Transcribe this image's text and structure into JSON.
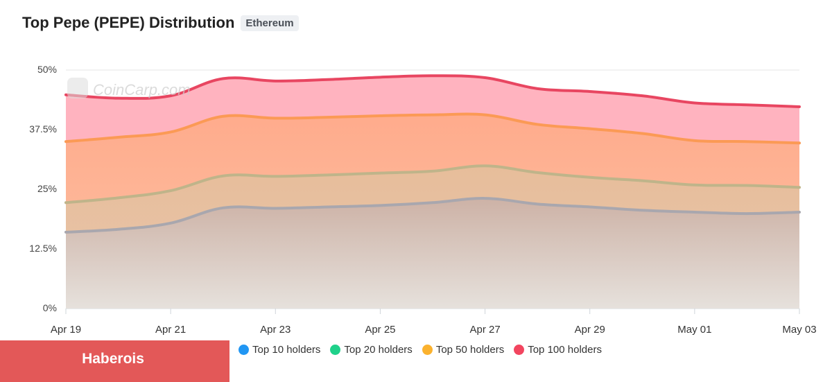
{
  "title": "Top Pepe (PEPE) Distribution",
  "chain_badge": "Ethereum",
  "watermark": "CoinCarp.com",
  "banner": "Haberois",
  "chart_data": {
    "type": "area",
    "x": [
      "Apr 19",
      "Apr 20",
      "Apr 21",
      "Apr 22",
      "Apr 23",
      "Apr 24",
      "Apr 25",
      "Apr 26",
      "Apr 27",
      "Apr 28",
      "Apr 29",
      "Apr 30",
      "May 01",
      "May 02",
      "May 03"
    ],
    "x_tick_labels": [
      "Apr 19",
      "Apr 21",
      "Apr 23",
      "Apr 25",
      "Apr 27",
      "Apr 29",
      "May 01",
      "May 03"
    ],
    "y_tick_labels": [
      "50%",
      "37.5%",
      "25%",
      "12.5%",
      "0%"
    ],
    "ylim": [
      0,
      50
    ],
    "grid": true,
    "legend_position": "bottom",
    "series": [
      {
        "name": "Top 10 holders",
        "color": "#2196f3",
        "values": [
          16,
          16.6,
          17.9,
          21.1,
          21.0,
          21.3,
          21.6,
          22.2,
          23.1,
          21.9,
          21.3,
          20.6,
          20.2,
          19.9,
          20.2
        ]
      },
      {
        "name": "Top 20 holders",
        "color": "#1fd18a",
        "values": [
          22.2,
          23.2,
          24.7,
          27.8,
          27.7,
          28.0,
          28.4,
          28.8,
          29.9,
          28.5,
          27.5,
          26.8,
          25.9,
          25.8,
          25.4
        ]
      },
      {
        "name": "Top 50 holders",
        "color": "#fbb22e",
        "values": [
          35.0,
          35.9,
          37.0,
          40.3,
          39.9,
          40.1,
          40.4,
          40.6,
          40.6,
          38.6,
          37.7,
          36.7,
          35.2,
          35.0,
          34.7
        ]
      },
      {
        "name": "Top 100 holders",
        "color": "#f2455f",
        "values": [
          44.8,
          44.1,
          44.6,
          48.2,
          47.7,
          48.0,
          48.5,
          48.8,
          48.4,
          46.1,
          45.5,
          44.6,
          43.1,
          42.7,
          42.3
        ]
      }
    ]
  }
}
